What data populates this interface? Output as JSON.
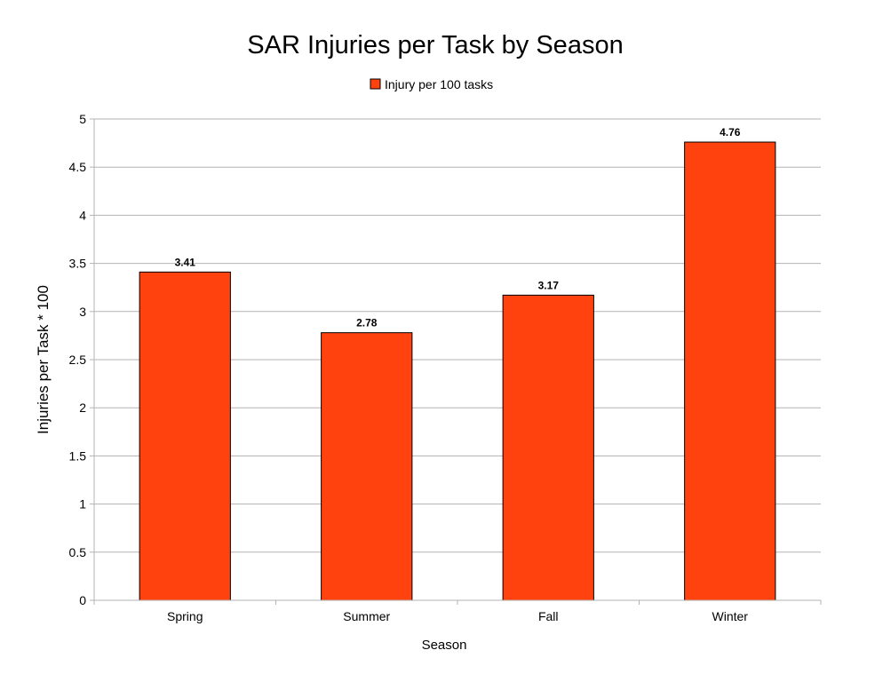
{
  "chart_data": {
    "type": "bar",
    "title": "SAR Injuries per Task by Season",
    "xlabel": "Season",
    "ylabel": "Injuries per Task * 100",
    "categories": [
      "Spring",
      "Summer",
      "Fall",
      "Winter"
    ],
    "series": [
      {
        "name": "Injury per 100 tasks",
        "values": [
          3.41,
          2.78,
          3.17,
          4.76
        ],
        "color": "#ff420e"
      }
    ],
    "data_labels": [
      "3.41",
      "2.78",
      "3.17",
      "4.76"
    ],
    "ylim": [
      0,
      5
    ],
    "yticks": [
      "0",
      "0.5",
      "1",
      "1.5",
      "2",
      "2.5",
      "3",
      "3.5",
      "4",
      "4.5",
      "5"
    ],
    "grid": true,
    "legend_position": "top-center"
  }
}
